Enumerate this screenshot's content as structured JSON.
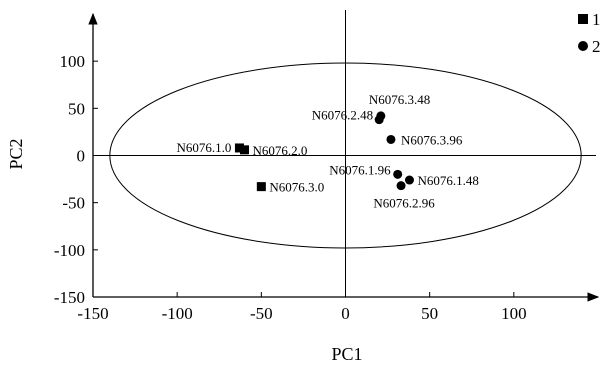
{
  "chart_data": {
    "type": "scatter",
    "title": "",
    "xlabel": "PC1",
    "ylabel": "PC2",
    "xlim": [
      -150,
      150
    ],
    "ylim": [
      -150,
      150
    ],
    "xticks": [
      -150,
      -100,
      -50,
      0,
      50,
      100
    ],
    "yticks": [
      -150,
      -100,
      -50,
      0,
      50,
      100
    ],
    "grid": false,
    "legend_position": "top-right",
    "confidence_ellipse": {
      "center": [
        0,
        0
      ],
      "radius_x": 140,
      "radius_y": 98
    },
    "series": [
      {
        "name": "1",
        "marker": "square",
        "points": [
          {
            "label": "N6076.1.0",
            "x": -63,
            "y": 8
          },
          {
            "label": "N6076.2.0",
            "x": -60,
            "y": 6
          },
          {
            "label": "N6076.3.0",
            "x": -50,
            "y": -33
          }
        ]
      },
      {
        "name": "2",
        "marker": "circle",
        "points": [
          {
            "label": "N6076.3.48",
            "x": 21,
            "y": 42
          },
          {
            "label": "N6076.2.48",
            "x": 20,
            "y": 38
          },
          {
            "label": "N6076.3.96",
            "x": 27,
            "y": 17
          },
          {
            "label": "N6076.1.96",
            "x": 31,
            "y": -20
          },
          {
            "label": "N6076.1.48",
            "x": 38,
            "y": -26
          },
          {
            "label": "N6076.2.96",
            "x": 33,
            "y": -32
          }
        ]
      }
    ]
  }
}
